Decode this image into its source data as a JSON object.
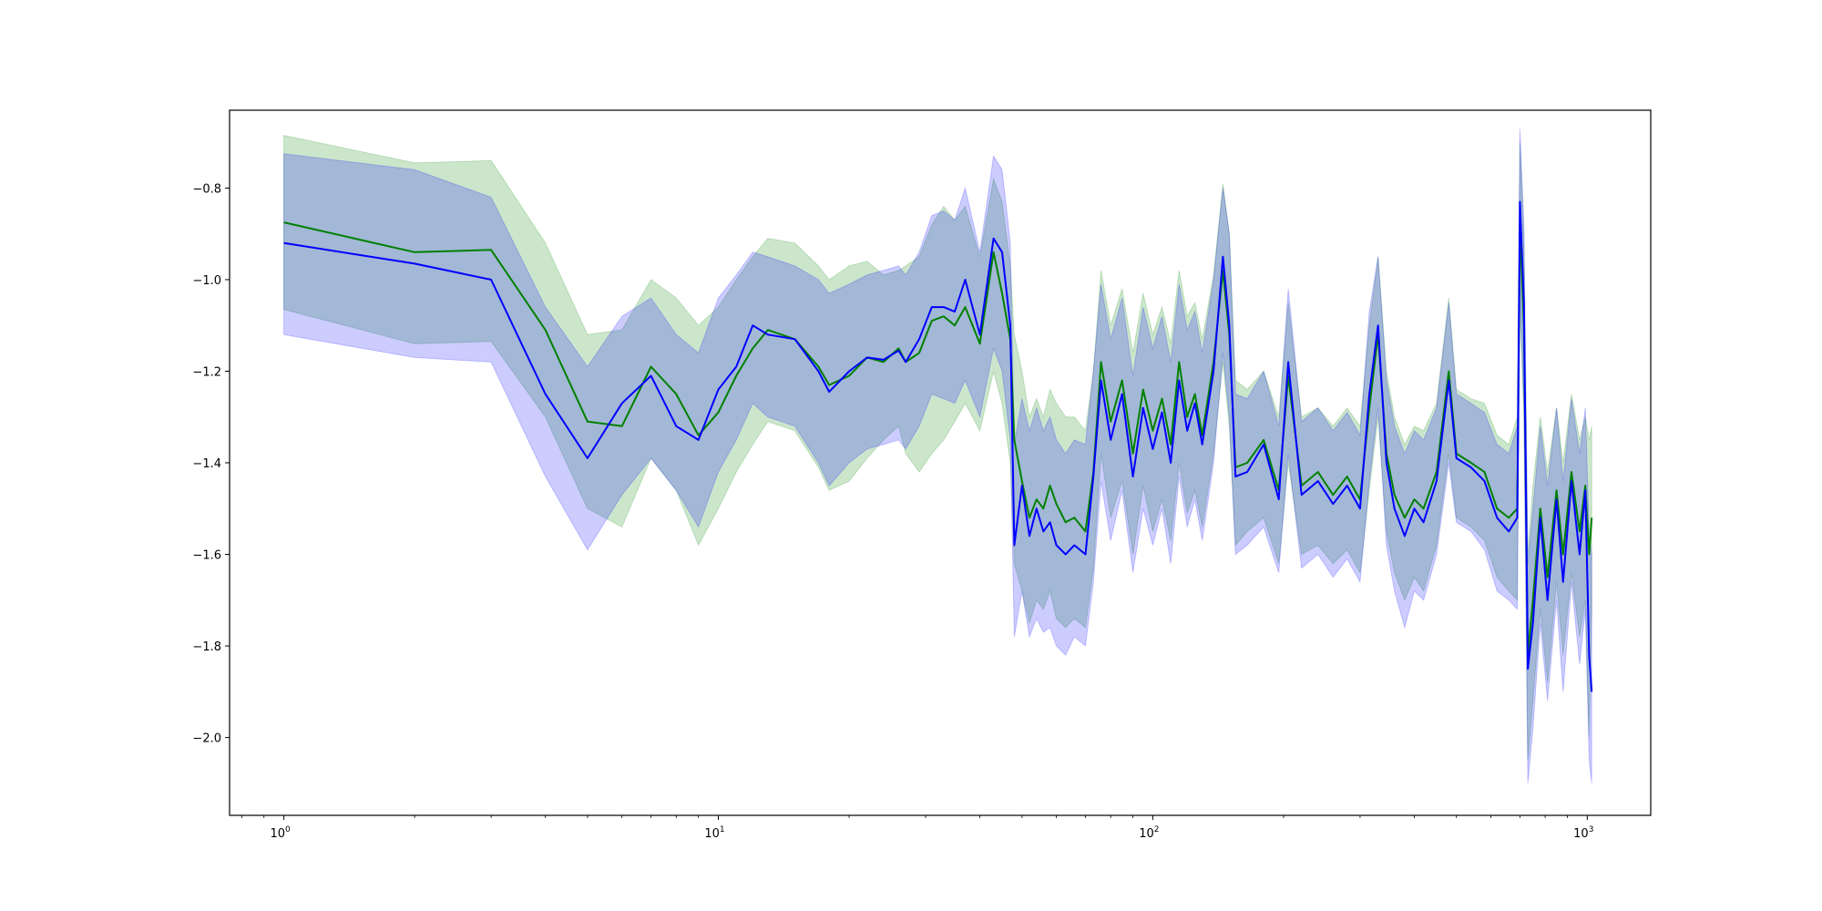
{
  "chart_data": {
    "type": "line",
    "title": "",
    "xlabel": "",
    "ylabel": "",
    "x_scale": "log",
    "xlim": [
      0.75,
      1400
    ],
    "ylim": [
      -2.17,
      -0.63
    ],
    "grid": false,
    "x_ticks": [
      {
        "value": 1,
        "label_base": "10",
        "label_exp": "0"
      },
      {
        "value": 10,
        "label_base": "10",
        "label_exp": "1"
      },
      {
        "value": 100,
        "label_base": "10",
        "label_exp": "2"
      },
      {
        "value": 1000,
        "label_base": "10",
        "label_exp": "3"
      }
    ],
    "y_ticks": [
      {
        "value": -0.8,
        "label": "−0.8"
      },
      {
        "value": -1.0,
        "label": "−1.0"
      },
      {
        "value": -1.2,
        "label": "−1.2"
      },
      {
        "value": -1.4,
        "label": "−1.4"
      },
      {
        "value": -1.6,
        "label": "−1.6"
      },
      {
        "value": -1.8,
        "label": "−1.8"
      },
      {
        "value": -2.0,
        "label": "−2.0"
      }
    ],
    "series": [
      {
        "color": "#008000",
        "band_color": "#008000",
        "band_opacity": 0.2,
        "points": [
          [
            1,
            -0.875,
            -1.065,
            -0.685
          ],
          [
            2,
            -0.94,
            -1.14,
            -0.745
          ],
          [
            3,
            -0.935,
            -1.135,
            -0.74
          ],
          [
            4,
            -1.11,
            -1.3,
            -0.92
          ],
          [
            5,
            -1.31,
            -1.5,
            -1.12
          ],
          [
            6,
            -1.32,
            -1.54,
            -1.11
          ],
          [
            7,
            -1.19,
            -1.39,
            -1.0
          ],
          [
            8,
            -1.25,
            -1.46,
            -1.04
          ],
          [
            9,
            -1.34,
            -1.58,
            -1.1
          ],
          [
            10,
            -1.29,
            -1.5,
            -1.06
          ],
          [
            11,
            -1.21,
            -1.42,
            -1.0
          ],
          [
            12,
            -1.15,
            -1.36,
            -0.95
          ],
          [
            13,
            -1.11,
            -1.31,
            -0.91
          ],
          [
            15,
            -1.13,
            -1.33,
            -0.92
          ],
          [
            17,
            -1.19,
            -1.41,
            -0.97
          ],
          [
            18,
            -1.23,
            -1.46,
            -1.0
          ],
          [
            20,
            -1.21,
            -1.44,
            -0.97
          ],
          [
            22,
            -1.17,
            -1.39,
            -0.96
          ],
          [
            24,
            -1.18,
            -1.35,
            -0.99
          ],
          [
            26,
            -1.15,
            -1.32,
            -0.98
          ],
          [
            27,
            -1.18,
            -1.38,
            -0.97
          ],
          [
            29,
            -1.16,
            -1.42,
            -0.95
          ],
          [
            31,
            -1.09,
            -1.38,
            -0.88
          ],
          [
            33,
            -1.08,
            -1.35,
            -0.84
          ],
          [
            35,
            -1.1,
            -1.31,
            -0.87
          ],
          [
            37,
            -1.06,
            -1.27,
            -0.84
          ],
          [
            40,
            -1.14,
            -1.33,
            -0.95
          ],
          [
            43,
            -0.94,
            -1.2,
            -0.78
          ],
          [
            45,
            -1.03,
            -1.27,
            -0.83
          ],
          [
            47,
            -1.13,
            -1.4,
            -0.97
          ],
          [
            48,
            -1.35,
            -1.62,
            -1.12
          ],
          [
            50,
            -1.44,
            -1.68,
            -1.2
          ],
          [
            52,
            -1.52,
            -1.75,
            -1.3
          ],
          [
            54,
            -1.48,
            -1.7,
            -1.26
          ],
          [
            56,
            -1.5,
            -1.72,
            -1.3
          ],
          [
            58,
            -1.45,
            -1.68,
            -1.24
          ],
          [
            60,
            -1.49,
            -1.74,
            -1.27
          ],
          [
            63,
            -1.53,
            -1.76,
            -1.3
          ],
          [
            66,
            -1.52,
            -1.74,
            -1.3
          ],
          [
            70,
            -1.55,
            -1.76,
            -1.33
          ],
          [
            73,
            -1.42,
            -1.63,
            -1.2
          ],
          [
            76,
            -1.18,
            -1.38,
            -0.98
          ],
          [
            80,
            -1.31,
            -1.52,
            -1.1
          ],
          [
            85,
            -1.22,
            -1.44,
            -1.02
          ],
          [
            90,
            -1.38,
            -1.6,
            -1.16
          ],
          [
            95,
            -1.24,
            -1.45,
            -1.03
          ],
          [
            100,
            -1.33,
            -1.55,
            -1.12
          ],
          [
            105,
            -1.26,
            -1.48,
            -1.06
          ],
          [
            110,
            -1.36,
            -1.57,
            -1.14
          ],
          [
            115,
            -1.18,
            -1.4,
            -0.98
          ],
          [
            120,
            -1.3,
            -1.51,
            -1.08
          ],
          [
            125,
            -1.25,
            -1.46,
            -1.05
          ],
          [
            130,
            -1.34,
            -1.54,
            -1.13
          ],
          [
            138,
            -1.18,
            -1.38,
            -0.99
          ],
          [
            145,
            -0.98,
            -1.18,
            -0.79
          ],
          [
            150,
            -1.12,
            -1.32,
            -0.9
          ],
          [
            155,
            -1.41,
            -1.58,
            -1.22
          ],
          [
            165,
            -1.4,
            -1.55,
            -1.24
          ],
          [
            180,
            -1.35,
            -1.52,
            -1.2
          ],
          [
            195,
            -1.46,
            -1.62,
            -1.3
          ],
          [
            205,
            -1.21,
            -1.4,
            -1.05
          ],
          [
            220,
            -1.45,
            -1.6,
            -1.3
          ],
          [
            240,
            -1.42,
            -1.58,
            -1.28
          ],
          [
            260,
            -1.47,
            -1.62,
            -1.32
          ],
          [
            280,
            -1.43,
            -1.59,
            -1.28
          ],
          [
            300,
            -1.48,
            -1.64,
            -1.32
          ],
          [
            315,
            -1.28,
            -1.46,
            -1.1
          ],
          [
            330,
            -1.12,
            -1.3,
            -0.95
          ],
          [
            345,
            -1.38,
            -1.55,
            -1.2
          ],
          [
            360,
            -1.47,
            -1.64,
            -1.3
          ],
          [
            380,
            -1.52,
            -1.7,
            -1.36
          ],
          [
            400,
            -1.48,
            -1.65,
            -1.32
          ],
          [
            420,
            -1.5,
            -1.68,
            -1.33
          ],
          [
            450,
            -1.42,
            -1.58,
            -1.27
          ],
          [
            480,
            -1.2,
            -1.38,
            -1.04
          ],
          [
            500,
            -1.38,
            -1.52,
            -1.24
          ],
          [
            540,
            -1.4,
            -1.54,
            -1.26
          ],
          [
            580,
            -1.42,
            -1.57,
            -1.27
          ],
          [
            620,
            -1.5,
            -1.65,
            -1.34
          ],
          [
            660,
            -1.52,
            -1.68,
            -1.36
          ],
          [
            690,
            -1.5,
            -1.7,
            -1.3
          ],
          [
            700,
            -0.88,
            -1.05,
            -0.7
          ],
          [
            715,
            -1.1,
            -1.3,
            -0.92
          ],
          [
            730,
            -1.82,
            -2.05,
            -1.6
          ],
          [
            750,
            -1.7,
            -1.92,
            -1.45
          ],
          [
            780,
            -1.5,
            -1.72,
            -1.3
          ],
          [
            810,
            -1.65,
            -1.88,
            -1.42
          ],
          [
            850,
            -1.46,
            -1.66,
            -1.28
          ],
          [
            880,
            -1.6,
            -1.82,
            -1.4
          ],
          [
            920,
            -1.42,
            -1.64,
            -1.25
          ],
          [
            960,
            -1.55,
            -1.78,
            -1.35
          ],
          [
            990,
            -1.45,
            -1.7,
            -1.3
          ],
          [
            1010,
            -1.6,
            -2.0,
            -1.35
          ],
          [
            1024,
            -1.52,
            -1.72,
            -1.32
          ]
        ]
      },
      {
        "color": "#0000ff",
        "band_color": "#0000ff",
        "band_opacity": 0.2,
        "points": [
          [
            1,
            -0.92,
            -1.12,
            -0.725
          ],
          [
            2,
            -0.965,
            -1.17,
            -0.76
          ],
          [
            3,
            -1.0,
            -1.18,
            -0.82
          ],
          [
            4,
            -1.25,
            -1.43,
            -1.06
          ],
          [
            5,
            -1.39,
            -1.59,
            -1.19
          ],
          [
            6,
            -1.27,
            -1.47,
            -1.08
          ],
          [
            7,
            -1.21,
            -1.39,
            -1.04
          ],
          [
            8,
            -1.32,
            -1.46,
            -1.12
          ],
          [
            9,
            -1.35,
            -1.54,
            -1.16
          ],
          [
            10,
            -1.24,
            -1.42,
            -1.04
          ],
          [
            11,
            -1.19,
            -1.35,
            -0.99
          ],
          [
            12,
            -1.1,
            -1.27,
            -0.94
          ],
          [
            13,
            -1.12,
            -1.3,
            -0.95
          ],
          [
            15,
            -1.13,
            -1.32,
            -0.97
          ],
          [
            17,
            -1.2,
            -1.4,
            -1.0
          ],
          [
            18,
            -1.245,
            -1.45,
            -1.03
          ],
          [
            20,
            -1.2,
            -1.4,
            -1.01
          ],
          [
            22,
            -1.17,
            -1.37,
            -0.99
          ],
          [
            24,
            -1.175,
            -1.36,
            -0.98
          ],
          [
            26,
            -1.155,
            -1.35,
            -0.97
          ],
          [
            27,
            -1.18,
            -1.37,
            -0.99
          ],
          [
            29,
            -1.13,
            -1.32,
            -0.94
          ],
          [
            31,
            -1.06,
            -1.25,
            -0.86
          ],
          [
            33,
            -1.06,
            -1.26,
            -0.85
          ],
          [
            35,
            -1.07,
            -1.27,
            -0.87
          ],
          [
            37,
            -1.0,
            -1.22,
            -0.8
          ],
          [
            40,
            -1.12,
            -1.3,
            -0.94
          ],
          [
            43,
            -0.91,
            -1.15,
            -0.73
          ],
          [
            45,
            -0.94,
            -1.2,
            -0.76
          ],
          [
            47,
            -1.1,
            -1.35,
            -0.92
          ],
          [
            48,
            -1.58,
            -1.78,
            -1.36
          ],
          [
            50,
            -1.45,
            -1.68,
            -1.26
          ],
          [
            52,
            -1.56,
            -1.78,
            -1.33
          ],
          [
            54,
            -1.5,
            -1.74,
            -1.28
          ],
          [
            56,
            -1.55,
            -1.77,
            -1.33
          ],
          [
            58,
            -1.53,
            -1.76,
            -1.3
          ],
          [
            60,
            -1.58,
            -1.8,
            -1.35
          ],
          [
            63,
            -1.6,
            -1.82,
            -1.38
          ],
          [
            66,
            -1.58,
            -1.78,
            -1.35
          ],
          [
            70,
            -1.6,
            -1.8,
            -1.36
          ],
          [
            73,
            -1.43,
            -1.66,
            -1.2
          ],
          [
            76,
            -1.22,
            -1.44,
            -1.01
          ],
          [
            80,
            -1.35,
            -1.57,
            -1.13
          ],
          [
            85,
            -1.25,
            -1.46,
            -1.04
          ],
          [
            90,
            -1.43,
            -1.64,
            -1.21
          ],
          [
            95,
            -1.28,
            -1.5,
            -1.06
          ],
          [
            100,
            -1.37,
            -1.58,
            -1.15
          ],
          [
            105,
            -1.29,
            -1.5,
            -1.08
          ],
          [
            110,
            -1.4,
            -1.62,
            -1.18
          ],
          [
            115,
            -1.22,
            -1.43,
            -1.01
          ],
          [
            120,
            -1.33,
            -1.54,
            -1.11
          ],
          [
            125,
            -1.27,
            -1.48,
            -1.07
          ],
          [
            130,
            -1.36,
            -1.57,
            -1.16
          ],
          [
            138,
            -1.2,
            -1.4,
            -1.0
          ],
          [
            145,
            -0.95,
            -1.16,
            -0.8
          ],
          [
            150,
            -1.1,
            -1.3,
            -0.9
          ],
          [
            155,
            -1.43,
            -1.6,
            -1.25
          ],
          [
            165,
            -1.42,
            -1.58,
            -1.26
          ],
          [
            180,
            -1.36,
            -1.54,
            -1.2
          ],
          [
            195,
            -1.48,
            -1.64,
            -1.32
          ],
          [
            205,
            -1.18,
            -1.38,
            -1.02
          ],
          [
            220,
            -1.47,
            -1.63,
            -1.31
          ],
          [
            240,
            -1.44,
            -1.6,
            -1.28
          ],
          [
            260,
            -1.49,
            -1.65,
            -1.33
          ],
          [
            280,
            -1.45,
            -1.61,
            -1.29
          ],
          [
            300,
            -1.5,
            -1.66,
            -1.34
          ],
          [
            315,
            -1.25,
            -1.44,
            -1.07
          ],
          [
            330,
            -1.1,
            -1.28,
            -0.95
          ],
          [
            345,
            -1.4,
            -1.58,
            -1.22
          ],
          [
            360,
            -1.5,
            -1.68,
            -1.32
          ],
          [
            380,
            -1.56,
            -1.76,
            -1.38
          ],
          [
            400,
            -1.5,
            -1.68,
            -1.33
          ],
          [
            420,
            -1.53,
            -1.7,
            -1.35
          ],
          [
            450,
            -1.44,
            -1.6,
            -1.28
          ],
          [
            480,
            -1.22,
            -1.4,
            -1.05
          ],
          [
            500,
            -1.39,
            -1.53,
            -1.25
          ],
          [
            540,
            -1.41,
            -1.55,
            -1.27
          ],
          [
            580,
            -1.44,
            -1.59,
            -1.29
          ],
          [
            620,
            -1.52,
            -1.68,
            -1.36
          ],
          [
            660,
            -1.55,
            -1.7,
            -1.38
          ],
          [
            690,
            -1.52,
            -1.72,
            -1.32
          ],
          [
            700,
            -0.83,
            -1.02,
            -0.67
          ],
          [
            715,
            -1.05,
            -1.28,
            -0.88
          ],
          [
            730,
            -1.85,
            -2.1,
            -1.62
          ],
          [
            750,
            -1.75,
            -1.98,
            -1.5
          ],
          [
            780,
            -1.52,
            -1.75,
            -1.32
          ],
          [
            810,
            -1.7,
            -1.92,
            -1.45
          ],
          [
            850,
            -1.48,
            -1.7,
            -1.28
          ],
          [
            880,
            -1.66,
            -1.9,
            -1.44
          ],
          [
            920,
            -1.44,
            -1.66,
            -1.26
          ],
          [
            960,
            -1.6,
            -1.84,
            -1.38
          ],
          [
            990,
            -1.46,
            -1.72,
            -1.28
          ],
          [
            1010,
            -1.82,
            -2.05,
            -1.55
          ],
          [
            1024,
            -1.9,
            -2.1,
            -1.6
          ]
        ]
      }
    ]
  }
}
